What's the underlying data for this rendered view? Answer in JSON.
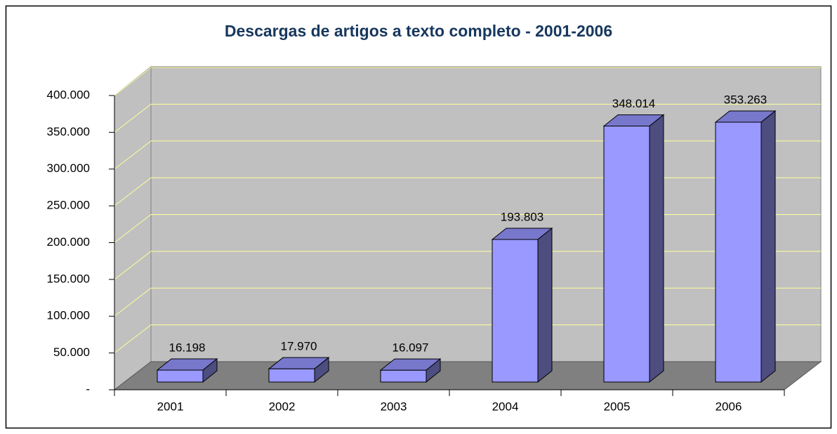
{
  "chart_data": {
    "type": "bar",
    "title": "Descargas de artigos a texto completo - 2001-2006",
    "categories": [
      "2001",
      "2002",
      "2003",
      "2004",
      "2005",
      "2006"
    ],
    "values": [
      16198,
      17970,
      16097,
      193803,
      348014,
      353263
    ],
    "value_labels": [
      "16.198",
      "17.970",
      "16.097",
      "193.803",
      "348.014",
      "353.263"
    ],
    "color": "#9999ff",
    "ylim": [
      0,
      400000
    ],
    "yticks": [
      {
        "value": 0,
        "label": "-"
      },
      {
        "value": 50000,
        "label": "50.000"
      },
      {
        "value": 100000,
        "label": "100.000"
      },
      {
        "value": 150000,
        "label": "150.000"
      },
      {
        "value": 200000,
        "label": "200.000"
      },
      {
        "value": 250000,
        "label": "250.000"
      },
      {
        "value": 300000,
        "label": "300.000"
      },
      {
        "value": 350000,
        "label": "350.000"
      },
      {
        "value": 400000,
        "label": "400.000"
      }
    ],
    "grid": true
  }
}
